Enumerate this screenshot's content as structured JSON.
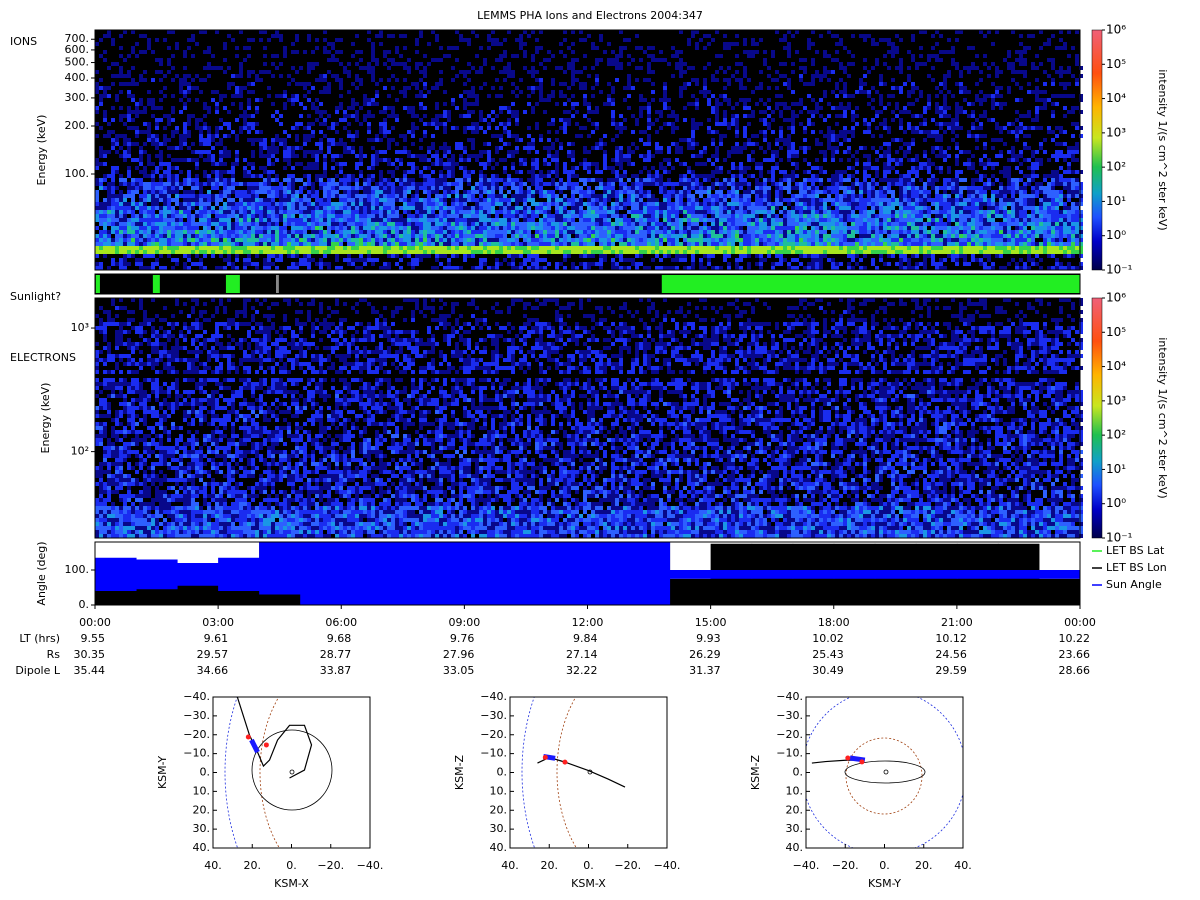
{
  "title": "LEMMS PHA Ions and Electrons  2004:347",
  "chart_data": [
    {
      "type": "spectrogram",
      "label": "IONS",
      "ylabel": "Energy (keV)",
      "ylog": true,
      "ylim": [
        25,
        800
      ],
      "yticks": [
        {
          "value": 100,
          "label": "100."
        },
        {
          "value": 200,
          "label": "200."
        },
        {
          "value": 300,
          "label": "300."
        },
        {
          "value": 400,
          "label": "400."
        },
        {
          "value": 500,
          "label": "500."
        },
        {
          "value": 600,
          "label": "600."
        },
        {
          "value": 700,
          "label": "700."
        }
      ],
      "colorbar": {
        "label": "intensity 1/(s cm^2 ster keV)",
        "log": true,
        "lim": [
          0.1,
          1000000
        ],
        "ticks": [
          {
            "value": 0.1,
            "label": "10⁻¹"
          },
          {
            "value": 1,
            "label": "10⁰"
          },
          {
            "value": 10,
            "label": "10¹"
          },
          {
            "value": 100,
            "label": "10²"
          },
          {
            "value": 1000,
            "label": "10³"
          },
          {
            "value": 10000,
            "label": "10⁴"
          },
          {
            "value": 100000,
            "label": "10⁵"
          },
          {
            "value": 1000000,
            "label": "10⁶"
          }
        ]
      }
    },
    {
      "type": "timeline",
      "label": "Sunlight?",
      "segments": [
        {
          "start": 0.02,
          "end": 0.12,
          "color": "#22ee22"
        },
        {
          "start": 1.41,
          "end": 1.58,
          "color": "#22ee22"
        },
        {
          "start": 3.19,
          "end": 3.53,
          "color": "#22ee22"
        },
        {
          "start": 4.41,
          "end": 4.48,
          "color": "#888888"
        },
        {
          "start": 13.81,
          "end": 24,
          "color": "#22ee22"
        }
      ]
    },
    {
      "type": "spectrogram",
      "label": "ELECTRONS",
      "ylabel": "Energy (keV)",
      "ylog": true,
      "ylim": [
        20,
        1750
      ],
      "yticks": [
        {
          "value": 100,
          "label": "10²"
        },
        {
          "value": 1000,
          "label": "10³"
        }
      ],
      "colorbar": {
        "label": "intensity 1/(s cm^2 ster keV)",
        "log": true,
        "lim": [
          0.1,
          1000000
        ],
        "ticks": [
          {
            "value": 0.1,
            "label": "10⁻¹"
          },
          {
            "value": 1,
            "label": "10⁰"
          },
          {
            "value": 10,
            "label": "10¹"
          },
          {
            "value": 100,
            "label": "10²"
          },
          {
            "value": 1000,
            "label": "10³"
          },
          {
            "value": 10000,
            "label": "10⁴"
          },
          {
            "value": 100000,
            "label": "10⁵"
          },
          {
            "value": 1000000,
            "label": "10⁶"
          }
        ]
      }
    },
    {
      "type": "band",
      "ylabel": "Angle (deg)",
      "ylim": [
        0,
        180
      ],
      "yticks": [
        {
          "value": 0,
          "label": "0."
        },
        {
          "value": 100,
          "label": "100."
        }
      ],
      "series": [
        {
          "name": "LET BS Lat",
          "color": "#22ee22"
        },
        {
          "name": "LET BS Lon",
          "color": "#000000",
          "x": [
            0,
            1,
            2,
            3,
            4,
            5,
            6,
            7,
            8,
            9,
            10,
            11,
            12,
            13,
            14,
            15,
            16,
            17,
            18,
            19,
            20,
            21,
            22,
            23
          ],
          "low": [
            0,
            0,
            0,
            0,
            0,
            0,
            0,
            0,
            0,
            0,
            0,
            0,
            0,
            0,
            0,
            0,
            0,
            0,
            0,
            0,
            0,
            0,
            0,
            0
          ],
          "high": [
            75,
            80,
            90,
            80,
            180,
            180,
            180,
            180,
            180,
            180,
            180,
            180,
            180,
            180,
            75,
            175,
            175,
            175,
            175,
            175,
            175,
            175,
            175,
            75
          ]
        },
        {
          "name": "Sun Angle",
          "color": "#0000ff",
          "x": [
            0,
            1,
            2,
            3,
            4,
            5,
            6,
            7,
            8,
            9,
            10,
            11,
            12,
            13,
            14,
            15,
            16,
            17,
            18,
            19,
            20,
            21,
            22,
            23
          ],
          "low": [
            40,
            45,
            55,
            40,
            30,
            0,
            0,
            0,
            0,
            0,
            0,
            0,
            0,
            0,
            75,
            75,
            75,
            75,
            75,
            75,
            75,
            75,
            75,
            75
          ],
          "high": [
            135,
            130,
            120,
            135,
            180,
            180,
            180,
            180,
            180,
            180,
            180,
            180,
            180,
            180,
            100,
            100,
            100,
            100,
            100,
            100,
            100,
            100,
            100,
            100
          ]
        }
      ]
    }
  ],
  "time_axis": {
    "xlim": [
      0,
      24
    ],
    "xticks": [
      {
        "value": 0,
        "label": "00:00"
      },
      {
        "value": 3,
        "label": "03:00"
      },
      {
        "value": 6,
        "label": "06:00"
      },
      {
        "value": 9,
        "label": "09:00"
      },
      {
        "value": 12,
        "label": "12:00"
      },
      {
        "value": 15,
        "label": "15:00"
      },
      {
        "value": 18,
        "label": "18:00"
      },
      {
        "value": 21,
        "label": "21:00"
      },
      {
        "value": 24,
        "label": "00:00"
      }
    ]
  },
  "ephemeris": [
    {
      "label": "LT (hrs)",
      "values": [
        "9.55",
        "9.61",
        "9.68",
        "9.76",
        "9.84",
        "9.93",
        "10.02",
        "10.12",
        "10.22"
      ]
    },
    {
      "label": "Rs",
      "values": [
        "30.35",
        "29.57",
        "28.77",
        "27.96",
        "27.14",
        "26.29",
        "25.43",
        "24.56",
        "23.66"
      ]
    },
    {
      "label": "Dipole L",
      "values": [
        "35.44",
        "34.66",
        "33.87",
        "33.05",
        "32.22",
        "31.37",
        "30.49",
        "29.59",
        "28.66"
      ]
    }
  ],
  "orbits": [
    {
      "xlabel": "KSM-X",
      "ylabel": "KSM-Y",
      "xlim": [
        40,
        -40
      ],
      "ylim": [
        40,
        -40
      ],
      "xticks": [
        {
          "value": 40,
          "label": "40."
        },
        {
          "value": 20,
          "label": "20."
        },
        {
          "value": 0,
          "label": "0."
        },
        {
          "value": -20,
          "label": "−20."
        },
        {
          "value": -40,
          "label": "−40."
        }
      ],
      "yticks": [
        {
          "value": -40,
          "label": "−40."
        },
        {
          "value": -30,
          "label": "−30."
        },
        {
          "value": -20,
          "label": "−20."
        },
        {
          "value": -10,
          "label": "−10."
        },
        {
          "value": 0,
          "label": "0."
        },
        {
          "value": 10,
          "label": "10."
        },
        {
          "value": 20,
          "label": "20."
        },
        {
          "value": 30,
          "label": "30."
        },
        {
          "value": 40,
          "label": "40."
        }
      ],
      "trajectory": {
        "x": [
          27.6,
          21.4,
          17.3,
          14.3,
          11.2,
          7.1,
          1,
          -6.6,
          -10.2,
          -6.6,
          1
        ],
        "y": [
          -40,
          -19.8,
          -10.8,
          -3.4,
          -6.6,
          -17.2,
          -25,
          -25,
          -14.6,
          -1.3,
          2.9
        ]
      },
      "segment": {
        "x": [
          20.4,
          17.3
        ],
        "y": [
          -17.2,
          -10.8
        ]
      },
      "markers": {
        "x": [
          22,
          12.8
        ],
        "y": [
          -18.8,
          -14.6
        ]
      }
    },
    {
      "xlabel": "KSM-X",
      "ylabel": "KSM-Z",
      "xlim": [
        40,
        -40
      ],
      "ylim": [
        40,
        -40
      ],
      "xticks": [
        {
          "value": 40,
          "label": "40."
        },
        {
          "value": 20,
          "label": "20."
        },
        {
          "value": 0,
          "label": "0."
        },
        {
          "value": -20,
          "label": "−20."
        },
        {
          "value": -40,
          "label": "−40."
        }
      ],
      "yticks": [
        {
          "value": -40,
          "label": "−40."
        },
        {
          "value": -30,
          "label": "−30."
        },
        {
          "value": -20,
          "label": "−20."
        },
        {
          "value": -10,
          "label": "−10."
        },
        {
          "value": 0,
          "label": "0."
        },
        {
          "value": 10,
          "label": "10."
        },
        {
          "value": 20,
          "label": "20."
        },
        {
          "value": 30,
          "label": "30."
        },
        {
          "value": 40,
          "label": "40."
        }
      ],
      "trajectory": {
        "x": [
          26,
          20,
          12,
          0,
          -10,
          -18.6
        ],
        "y": [
          -5,
          -8,
          -5.5,
          -1,
          3.5,
          7.7
        ]
      },
      "segment": {
        "x": [
          23,
          17
        ],
        "y": [
          -8.5,
          -7.5
        ]
      },
      "markers": {
        "x": [
          22,
          12
        ],
        "y": [
          -8,
          -5.5
        ]
      }
    },
    {
      "xlabel": "KSM-Y",
      "ylabel": "KSM-Z",
      "xlim": [
        -40,
        40
      ],
      "ylim": [
        40,
        -40
      ],
      "xticks": [
        {
          "value": -40,
          "label": "−40."
        },
        {
          "value": -20,
          "label": "−20."
        },
        {
          "value": 0,
          "label": "0."
        },
        {
          "value": 20,
          "label": "20."
        },
        {
          "value": 40,
          "label": "40."
        }
      ],
      "yticks": [
        {
          "value": -40,
          "label": "−40."
        },
        {
          "value": -30,
          "label": "−30."
        },
        {
          "value": -20,
          "label": "−20."
        },
        {
          "value": -10,
          "label": "−10."
        },
        {
          "value": 0,
          "label": "0."
        },
        {
          "value": 10,
          "label": "10."
        },
        {
          "value": 20,
          "label": "20."
        },
        {
          "value": 30,
          "label": "30."
        },
        {
          "value": 40,
          "label": "40."
        }
      ],
      "trajectory": {
        "x": [
          -37,
          -30,
          -20,
          -12.5
        ],
        "y": [
          -5,
          -5.8,
          -6.5,
          -6.6
        ]
      },
      "segment": {
        "x": [
          -17.6,
          -10
        ],
        "y": [
          -7.7,
          -6.6
        ]
      },
      "markers": {
        "x": [
          -18.7,
          -11.5
        ],
        "y": [
          -7.7,
          -5.6
        ]
      }
    }
  ]
}
